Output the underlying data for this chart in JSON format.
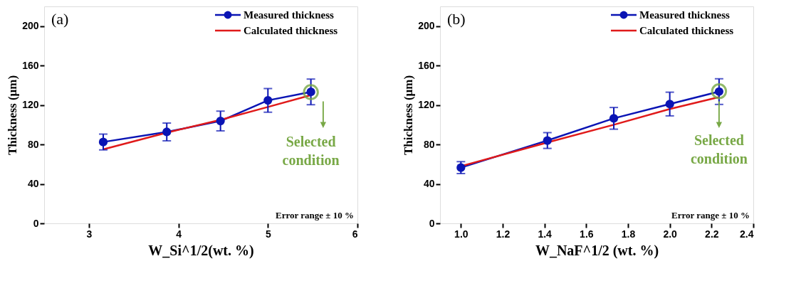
{
  "chart_data": [
    {
      "type": "line",
      "xlabel": "W_Si^1/2(wt. %)",
      "ylabel": "Thickness (μm)",
      "x": [
        3.16,
        3.87,
        4.47,
        5.0,
        5.48
      ],
      "xlim": [
        2.5,
        6
      ],
      "xticks": [
        3,
        4,
        5,
        6
      ],
      "ylim": [
        0,
        220
      ],
      "yticks": [
        0,
        40,
        80,
        120,
        160,
        200
      ],
      "grid": false,
      "legend": "top right",
      "annotations": [
        "(a)",
        "Error range ± 10 %",
        {
          "text": "Selected condition",
          "x": 5.48,
          "y": 133
        }
      ],
      "series": [
        {
          "name": "Measured thickness",
          "color": "#0a14b4",
          "marker": "circle",
          "values": [
            82.5,
            92.7,
            103.8,
            124.7,
            133.3
          ],
          "errors": [
            8,
            9,
            10,
            12,
            13
          ]
        },
        {
          "name": "Calculated thickness",
          "color": "#e01a1a",
          "marker": "none",
          "values": [
            75,
            92,
            105,
            118,
            130
          ]
        }
      ]
    },
    {
      "type": "line",
      "xlabel": "W_NaF^1/2 (wt. %)",
      "ylabel": "Thickness (μm)",
      "x": [
        1.0,
        1.414,
        1.732,
        2.0,
        2.236
      ],
      "xlim": [
        0.9,
        2.4
      ],
      "xticks": [
        {
          "value": 1.0,
          "label": "1.0"
        },
        1.2,
        1.4,
        1.6,
        1.8,
        {
          "value": 2.0,
          "label": "2.0"
        },
        2.2,
        2.4
      ],
      "ylim": [
        0,
        220
      ],
      "yticks": [
        0,
        40,
        80,
        120,
        160,
        200
      ],
      "grid": false,
      "legend": "top right",
      "annotations": [
        "(b)",
        "Error range ± 10 %",
        {
          "text": "Selected condition",
          "x": 2.236,
          "y": 134
        }
      ],
      "series": [
        {
          "name": "Measured thickness",
          "color": "#0a14b4",
          "marker": "circle",
          "values": [
            56.5,
            84,
            106.5,
            121,
            133.6
          ],
          "errors": [
            6,
            8,
            11,
            12,
            13
          ]
        },
        {
          "name": "Calculated thickness",
          "color": "#e01a1a",
          "marker": "none",
          "values": [
            58,
            82,
            100,
            116,
            128
          ]
        }
      ]
    }
  ]
}
